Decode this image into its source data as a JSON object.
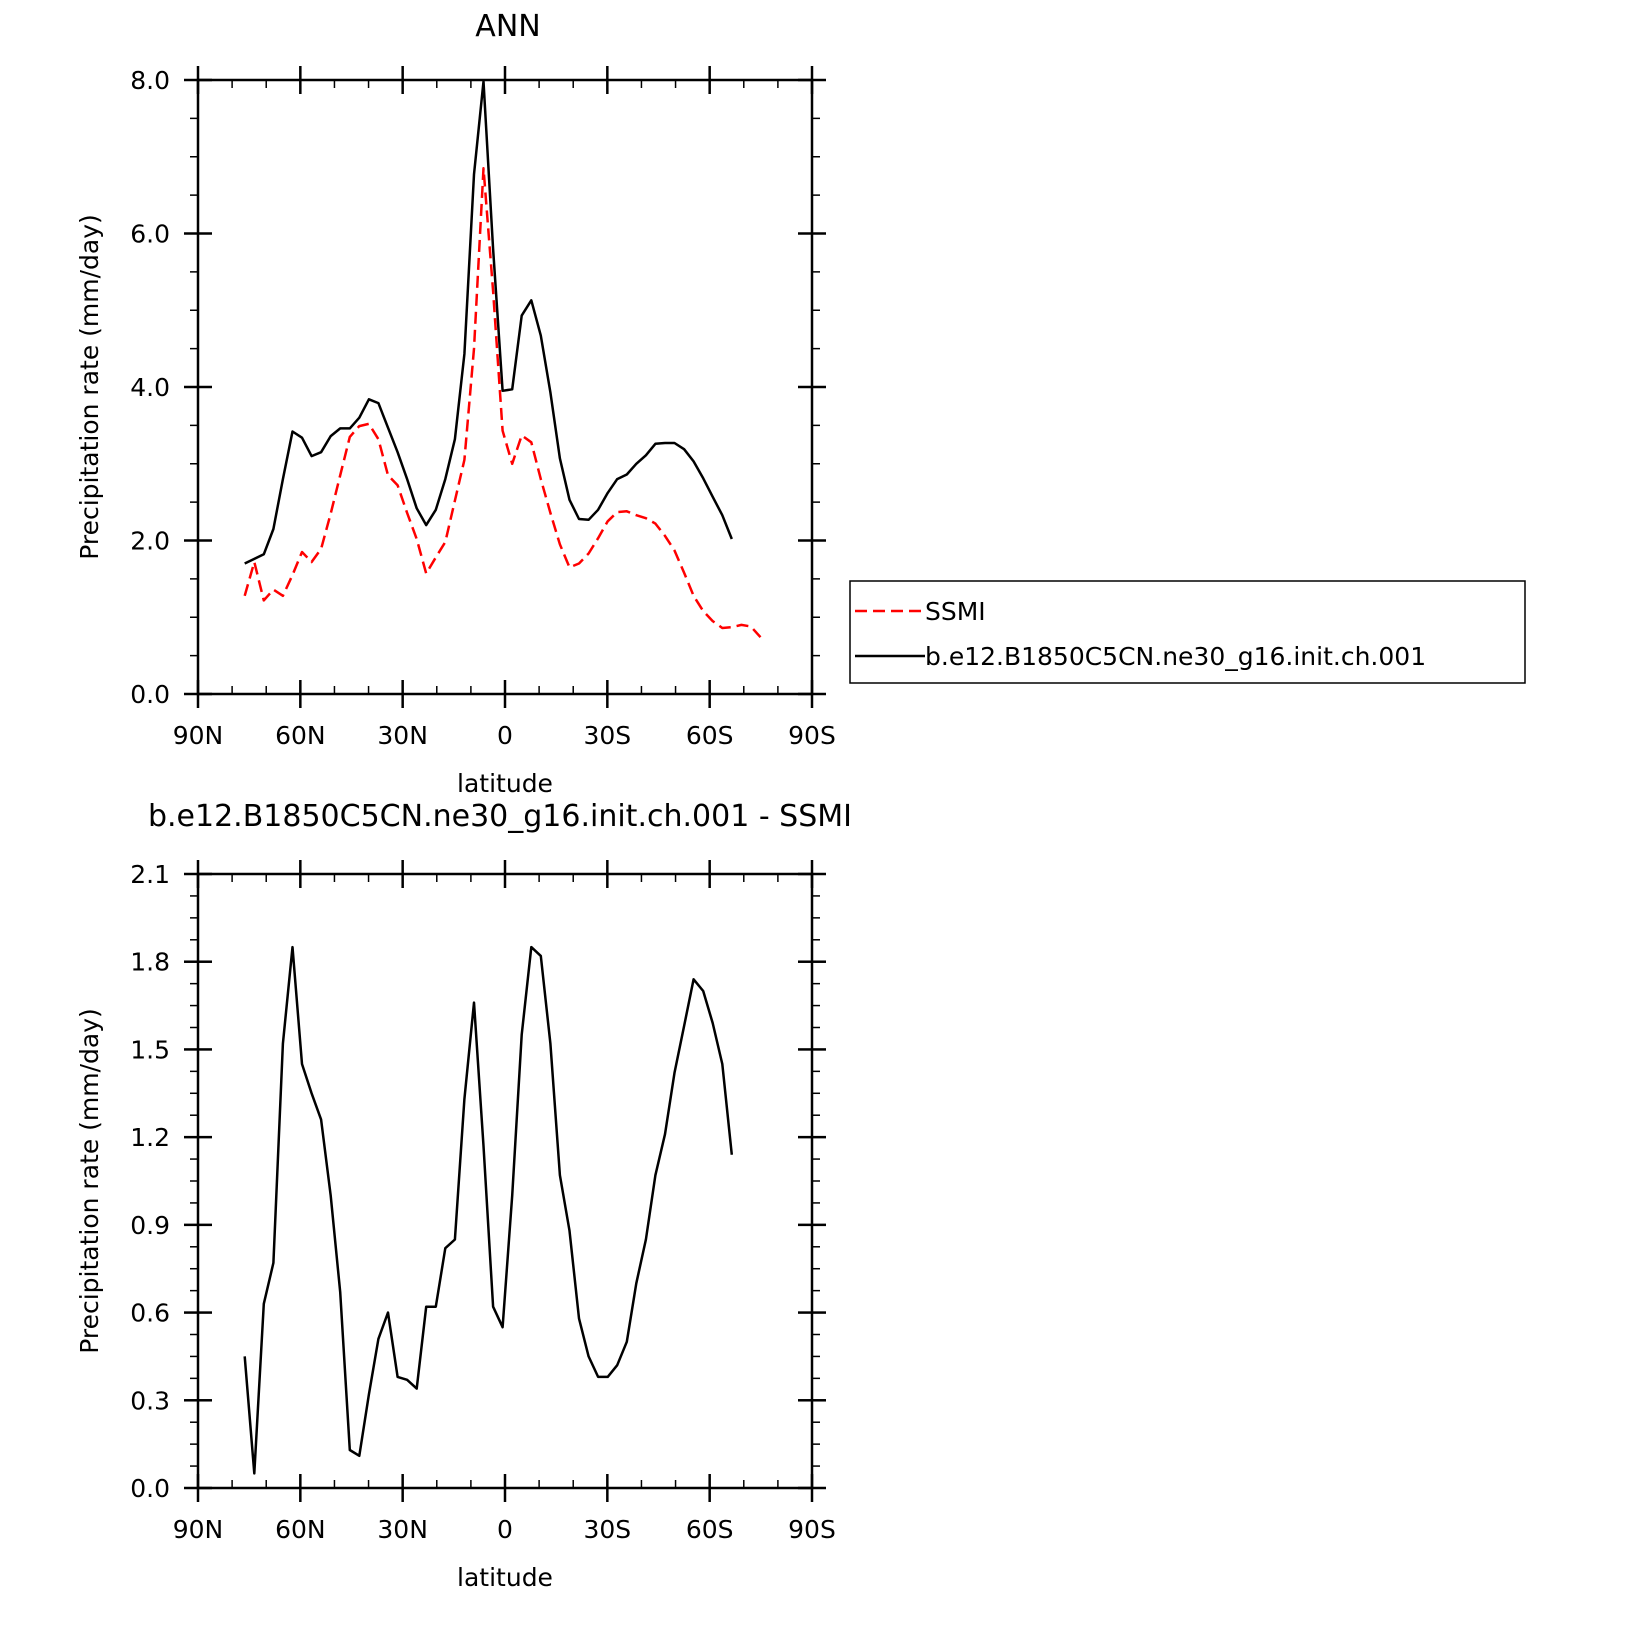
{
  "chart_data": [
    {
      "type": "line",
      "title": "ANN",
      "xlabel": "latitude",
      "ylabel": "Precipitation rate (mm/day)",
      "xlim": [
        90,
        -90
      ],
      "ylim": [
        0,
        8
      ],
      "xticks": [
        90,
        60,
        30,
        0,
        -30,
        -60,
        -90
      ],
      "xticklabels": [
        "90N",
        "60N",
        "30N",
        "0",
        "30S",
        "60S",
        "90S"
      ],
      "yticks": [
        0,
        2,
        4,
        6,
        8
      ],
      "yticklabels": [
        "0.0",
        "2.0",
        "4.0",
        "6.0",
        "8.0"
      ],
      "grid": false,
      "legend": "right",
      "series": [
        {
          "name": "SSMI",
          "color": "#ff0000",
          "dash": "dashed",
          "x": [
            76.3,
            73.5,
            70.7,
            67.9,
            65.1,
            62.3,
            59.5,
            56.7,
            53.9,
            51.1,
            48.3,
            45.5,
            42.7,
            39.9,
            37.1,
            34.3,
            31.5,
            28.7,
            25.9,
            23.1,
            20.3,
            17.5,
            14.7,
            11.9,
            9.1,
            6.3,
            3.5,
            0.7,
            -2.1,
            -4.9,
            -7.7,
            -10.5,
            -13.3,
            -16.1,
            -18.9,
            -21.7,
            -24.5,
            -27.3,
            -30.1,
            -32.9,
            -35.7,
            -38.5,
            -41.3,
            -44.1,
            -46.9,
            -49.7,
            -52.5,
            -55.3,
            -58.1,
            -60.9,
            -63.7,
            -66.5,
            -69.3,
            -72.1,
            -74.9
          ],
          "y": [
            1.28,
            1.72,
            1.22,
            1.36,
            1.28,
            1.55,
            1.85,
            1.72,
            1.89,
            2.35,
            2.85,
            3.35,
            3.49,
            3.52,
            3.32,
            2.85,
            2.72,
            2.36,
            2.02,
            1.57,
            1.78,
            1.98,
            2.52,
            3.05,
            4.5,
            6.85,
            5.25,
            3.43,
            3.0,
            3.37,
            3.28,
            2.8,
            2.36,
            1.95,
            1.65,
            1.7,
            1.83,
            2.03,
            2.25,
            2.37,
            2.38,
            2.33,
            2.29,
            2.22,
            2.06,
            1.87,
            1.58,
            1.28,
            1.08,
            0.95,
            0.86,
            0.87,
            0.9,
            0.88,
            0.74
          ]
        },
        {
          "name": "b.e12.B1850C5CN.ne30_g16.init.ch.001",
          "color": "#000000",
          "dash": "solid",
          "x": [
            76.3,
            73.5,
            70.7,
            67.9,
            65.1,
            62.3,
            59.5,
            56.7,
            53.9,
            51.1,
            48.3,
            45.5,
            42.7,
            39.9,
            37.1,
            34.3,
            31.5,
            28.7,
            25.9,
            23.1,
            20.3,
            17.5,
            14.7,
            11.9,
            9.1,
            6.3,
            3.5,
            0.7,
            -2.1,
            -4.9,
            -7.7,
            -10.5,
            -13.3,
            -16.1,
            -18.9,
            -21.7,
            -24.5,
            -27.3,
            -30.1,
            -32.9,
            -35.7,
            -38.5,
            -41.3,
            -44.1,
            -46.9,
            -49.7,
            -52.5,
            -55.3,
            -58.1,
            -60.9,
            -63.7,
            -66.5
          ],
          "y": [
            1.7,
            1.76,
            1.82,
            2.15,
            2.8,
            3.42,
            3.34,
            3.1,
            3.15,
            3.36,
            3.46,
            3.46,
            3.6,
            3.84,
            3.79,
            3.47,
            3.15,
            2.8,
            2.42,
            2.2,
            2.4,
            2.8,
            3.32,
            4.43,
            6.77,
            7.98,
            5.8,
            3.95,
            3.97,
            4.93,
            5.13,
            4.67,
            3.93,
            3.07,
            2.53,
            2.28,
            2.27,
            2.4,
            2.62,
            2.8,
            2.86,
            3.0,
            3.11,
            3.26,
            3.27,
            3.27,
            3.19,
            3.03,
            2.81,
            2.57,
            2.33,
            2.02
          ]
        }
      ]
    },
    {
      "type": "line",
      "title": "b.e12.B1850C5CN.ne30_g16.init.ch.001 - SSMI",
      "xlabel": "latitude",
      "ylabel": "Precipitation rate (mm/day)",
      "xlim": [
        90,
        -90
      ],
      "ylim": [
        0,
        2.1
      ],
      "xticks": [
        90,
        60,
        30,
        0,
        -30,
        -60,
        -90
      ],
      "xticklabels": [
        "90N",
        "60N",
        "30N",
        "0",
        "30S",
        "60S",
        "90S"
      ],
      "yticks": [
        0,
        0.3,
        0.6,
        0.9,
        1.2,
        1.5,
        1.8,
        2.1
      ],
      "yticklabels": [
        "0.0",
        "0.3",
        "0.6",
        "0.9",
        "1.2",
        "1.5",
        "1.8",
        "2.1"
      ],
      "grid": false,
      "series": [
        {
          "color": "#000000",
          "dash": "solid",
          "x": [
            76.3,
            73.5,
            70.7,
            67.9,
            65.1,
            62.3,
            59.5,
            56.7,
            53.9,
            51.1,
            48.3,
            45.5,
            42.7,
            39.9,
            37.1,
            34.3,
            31.5,
            28.7,
            25.9,
            23.1,
            20.3,
            17.5,
            14.7,
            11.9,
            9.1,
            6.3,
            3.5,
            0.7,
            -2.1,
            -4.9,
            -7.7,
            -10.5,
            -13.3,
            -16.1,
            -18.9,
            -21.7,
            -24.5,
            -27.3,
            -30.1,
            -32.9,
            -35.7,
            -38.5,
            -41.3,
            -44.1,
            -46.9,
            -49.7,
            -52.5,
            -55.3,
            -58.1,
            -60.9,
            -63.7,
            -66.5
          ],
          "y": [
            0.45,
            0.05,
            0.63,
            0.77,
            1.52,
            1.85,
            1.45,
            1.35,
            1.26,
            1.0,
            0.67,
            0.13,
            0.11,
            0.32,
            0.51,
            0.6,
            0.38,
            0.37,
            0.34,
            0.62,
            0.62,
            0.82,
            0.85,
            1.33,
            1.66,
            1.17,
            0.62,
            0.55,
            1.0,
            1.55,
            1.85,
            1.82,
            1.52,
            1.07,
            0.88,
            0.58,
            0.45,
            0.38,
            0.38,
            0.42,
            0.5,
            0.7,
            0.85,
            1.07,
            1.21,
            1.42,
            1.58,
            1.74,
            1.7,
            1.59,
            1.45,
            1.14
          ]
        }
      ]
    }
  ]
}
